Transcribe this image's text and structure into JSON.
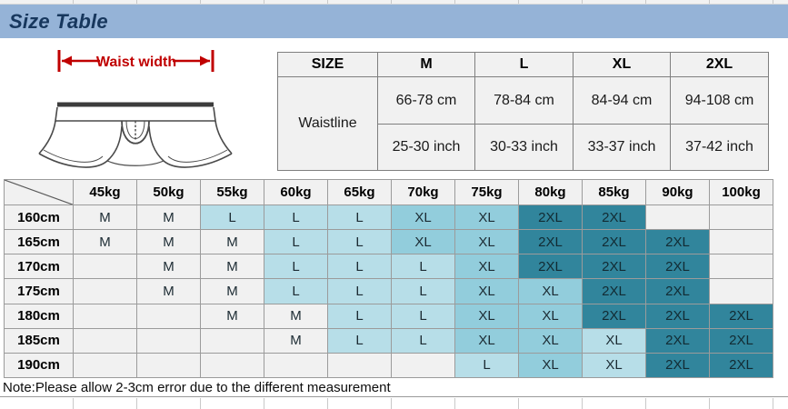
{
  "header": {
    "title": "Size Table"
  },
  "illustration": {
    "arrow_label": "Waist width"
  },
  "size_chart": {
    "col_headers": [
      "SIZE",
      "M",
      "L",
      "XL",
      "2XL"
    ],
    "row_label": "Waistline",
    "cm_row": [
      "66-78 cm",
      "78-84 cm",
      "84-94 cm",
      "94-108 cm"
    ],
    "inch_row": [
      "25-30 inch",
      "30-33 inch",
      "33-37 inch",
      "37-42 inch"
    ]
  },
  "matrix": {
    "weight_headers": [
      "45kg",
      "50kg",
      "55kg",
      "60kg",
      "65kg",
      "70kg",
      "75kg",
      "80kg",
      "85kg",
      "90kg",
      "100kg"
    ],
    "rows": [
      {
        "label": "160cm",
        "cells": [
          "M|p",
          "M|p",
          "L|l",
          "L|l",
          "L|l",
          "XL|m",
          "XL|m",
          "2XL|d",
          "2XL|d",
          "|p",
          "|p"
        ]
      },
      {
        "label": "165cm",
        "cells": [
          "M|p",
          "M|p",
          "M|p",
          "L|l",
          "L|l",
          "XL|m",
          "XL|m",
          "2XL|d",
          "2XL|d",
          "2XL|d",
          "|p"
        ]
      },
      {
        "label": "170cm",
        "cells": [
          "|p",
          "M|p",
          "M|p",
          "L|l",
          "L|l",
          "L|l",
          "XL|m",
          "2XL|d",
          "2XL|d",
          "2XL|d",
          "|p"
        ]
      },
      {
        "label": "175cm",
        "cells": [
          "|p",
          "M|p",
          "M|p",
          "L|l",
          "L|l",
          "L|l",
          "XL|m",
          "XL|m",
          "2XL|d",
          "2XL|d",
          "|p"
        ]
      },
      {
        "label": "180cm",
        "cells": [
          "|p",
          "|p",
          "M|p",
          "M|p",
          "L|l",
          "L|l",
          "XL|m",
          "XL|m",
          "2XL|d",
          "2XL|d",
          "2XL|d"
        ]
      },
      {
        "label": "185cm",
        "cells": [
          "|p",
          "|p",
          "|p",
          "M|p",
          "L|l",
          "L|l",
          "XL|m",
          "XL|m",
          "XL|l",
          "2XL|d",
          "2XL|d"
        ]
      },
      {
        "label": "190cm",
        "cells": [
          "|p",
          "|p",
          "|p",
          "|p",
          "|p",
          "|p",
          "L|l",
          "XL|m",
          "XL|l",
          "2XL|d",
          "2XL|d"
        ]
      }
    ]
  },
  "note": "Note:Please allow 2-3cm error due to the different measurement",
  "colors": {
    "title_band_bg": "#95B3D7",
    "title_text": "#17375D",
    "accent_red": "#C00000",
    "cell_plain": "#F1F1F1",
    "cell_light": "#B7DEE8",
    "cell_medium": "#92CDDC",
    "cell_dark": "#31859C",
    "drawing_stroke": "#4A4A4A"
  }
}
